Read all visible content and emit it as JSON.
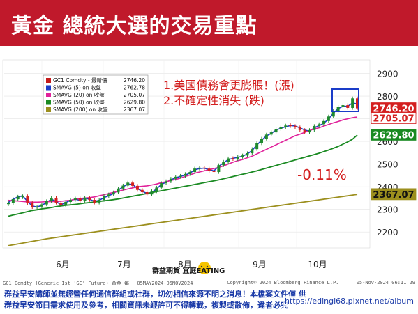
{
  "header": {
    "title": "黃金 總統大選的交易重點"
  },
  "annotations": {
    "line1": "1.美國債務會更膨脹！(漲)",
    "line2": "2.不確定性消失 (跌)",
    "change": "-0.11%"
  },
  "watermark": {
    "text": "群益期貨 宜庭EATING"
  },
  "footnote": {
    "left": "GC1 Comdty (Generic 1st 'GC' Future) 黃金 每日 05MAY2024-05NOV2024",
    "right": "Copyright© 2024 Bloomberg Finance L.P.",
    "date": "05-Nov-2024 06:11:29"
  },
  "disclaimer": {
    "line1": "群益早安講師並無經營任何通信群組或社群，切勿相信來源不明之消息！本檔案文件僅 供",
    "line2": "群益早安節目需求使用及參考，相關資訊未經許可不得轉載，複製或散佈，違者必究",
    "url": "https://edingl68.pixnet.net/album"
  },
  "colors": {
    "accent": "#c0192b",
    "sma5": "#1a3cc8",
    "sma20": "#e0209a",
    "sma50": "#1a8a22",
    "sma200": "#9c8f1e",
    "up": "#1f8a2e",
    "down": "#d42020"
  },
  "chart_data": {
    "type": "line",
    "subtype": "candlestick",
    "x_ticks": [
      "6月",
      "7月",
      "8月",
      "9月",
      "10月"
    ],
    "y_ticks": [
      2200,
      2300,
      2400,
      2500,
      2600,
      2700,
      2800,
      2900
    ],
    "ylim": [
      2130,
      2960
    ],
    "grid": true,
    "legend": {
      "placement": "top-left",
      "items": [
        {
          "name": "GC1 Comdty - 最新價",
          "value": "2746.20",
          "color": "#c41a1a"
        },
        {
          "name": "SMAVG (5)  on 收盤",
          "value": "2762.78",
          "color": "#1a3cc8"
        },
        {
          "name": "SMAVG (20) on 收盤",
          "value": "2705.07",
          "color": "#e0209a"
        },
        {
          "name": "SMAVG (50) on 收盤",
          "value": "2629.80",
          "color": "#1a8a22"
        },
        {
          "name": "SMAVG (200) on 收盤",
          "value": "2367.07",
          "color": "#9c8f1e"
        }
      ]
    },
    "last_value_labels": [
      {
        "text": "2746.20",
        "value": 2746.2,
        "bg": "#d42020",
        "fg": "#ffffff"
      },
      {
        "text": "2705.07",
        "value": 2705.07,
        "bg": "#ffffff",
        "fg": "#d42020"
      },
      {
        "text": "2629.80",
        "value": 2629.8,
        "bg": "#1a8a22",
        "fg": "#ffffff"
      },
      {
        "text": "2367.07",
        "value": 2367.07,
        "bg": "#9c8f1e",
        "fg": "#111111"
      }
    ],
    "series": [
      {
        "name": "SMAVG (5)",
        "values": [
          2330,
          2345,
          2355,
          2360,
          2335,
          2315,
          2310,
          2318,
          2330,
          2345,
          2335,
          2320,
          2330,
          2340,
          2345,
          2340,
          2350,
          2345,
          2335,
          2340,
          2352,
          2360,
          2370,
          2385,
          2400,
          2412,
          2410,
          2392,
          2380,
          2370,
          2375,
          2390,
          2410,
          2420,
          2430,
          2440,
          2445,
          2452,
          2460,
          2475,
          2480,
          2482,
          2475,
          2470,
          2490,
          2505,
          2520,
          2525,
          2530,
          2535,
          2545,
          2560,
          2585,
          2605,
          2625,
          2635,
          2650,
          2658,
          2665,
          2670,
          2668,
          2660,
          2650,
          2645,
          2660,
          2670,
          2680,
          2700,
          2725,
          2745,
          2755,
          2755,
          2770,
          2765
        ]
      },
      {
        "name": "SMAVG (20)",
        "values": [
          2340,
          2338,
          2337,
          2335,
          2333,
          2332,
          2332,
          2333,
          2334,
          2334,
          2335,
          2336,
          2338,
          2340,
          2345,
          2348,
          2350,
          2352,
          2355,
          2360,
          2365,
          2370,
          2375,
          2380,
          2385,
          2390,
          2395,
          2400,
          2402,
          2404,
          2408,
          2412,
          2418,
          2422,
          2428,
          2432,
          2438,
          2445,
          2452,
          2460,
          2465,
          2470,
          2475,
          2480,
          2485,
          2492,
          2500,
          2508,
          2515,
          2520,
          2528,
          2535,
          2545,
          2555,
          2565,
          2575,
          2585,
          2595,
          2605,
          2615,
          2625,
          2632,
          2640,
          2648,
          2655,
          2660,
          2668,
          2675,
          2682,
          2688,
          2695,
          2700,
          2705,
          2708
        ]
      },
      {
        "name": "SMAVG (50)",
        "values": [
          2270,
          2275,
          2280,
          2285,
          2290,
          2295,
          2298,
          2302,
          2305,
          2308,
          2312,
          2315,
          2318,
          2320,
          2322,
          2325,
          2328,
          2330,
          2333,
          2335,
          2338,
          2340,
          2343,
          2346,
          2350,
          2354,
          2358,
          2362,
          2366,
          2370,
          2374,
          2378,
          2382,
          2386,
          2390,
          2394,
          2398,
          2402,
          2406,
          2410,
          2414,
          2418,
          2422,
          2426,
          2430,
          2435,
          2440,
          2445,
          2450,
          2455,
          2460,
          2465,
          2470,
          2476,
          2482,
          2488,
          2494,
          2500,
          2506,
          2512,
          2518,
          2524,
          2530,
          2536,
          2542,
          2548,
          2555,
          2562,
          2570,
          2578,
          2588,
          2598,
          2610,
          2628
        ]
      },
      {
        "name": "SMAVG (200)",
        "values": [
          2140,
          2145,
          2150,
          2155,
          2160,
          2165,
          2170,
          2174,
          2178,
          2182,
          2186,
          2190,
          2194,
          2198,
          2202,
          2206,
          2210,
          2214,
          2218,
          2222,
          2226,
          2230,
          2234,
          2238,
          2242,
          2246,
          2250,
          2254,
          2258,
          2262,
          2266,
          2270,
          2274,
          2278,
          2282,
          2286,
          2290,
          2294,
          2298,
          2302,
          2306,
          2310,
          2314,
          2318,
          2322,
          2326,
          2330,
          2334,
          2338,
          2342,
          2346,
          2350,
          2354,
          2358,
          2362,
          2366
        ]
      }
    ],
    "candles_close": [
      2328,
      2345,
      2356,
      2358,
      2328,
      2310,
      2312,
      2322,
      2336,
      2350,
      2330,
      2318,
      2333,
      2342,
      2348,
      2336,
      2352,
      2342,
      2330,
      2342,
      2358,
      2366,
      2375,
      2392,
      2405,
      2418,
      2404,
      2386,
      2376,
      2366,
      2380,
      2396,
      2416,
      2424,
      2435,
      2444,
      2448,
      2456,
      2465,
      2480,
      2484,
      2480,
      2470,
      2465,
      2495,
      2510,
      2525,
      2522,
      2532,
      2538,
      2548,
      2566,
      2592,
      2612,
      2630,
      2640,
      2655,
      2662,
      2670,
      2668,
      2662,
      2650,
      2640,
      2650,
      2668,
      2676,
      2690,
      2710,
      2735,
      2752,
      2760,
      2748,
      2790,
      2746
    ],
    "candle_up": [
      true,
      true,
      true,
      true,
      false,
      false,
      true,
      true,
      true,
      true,
      false,
      false,
      true,
      true,
      true,
      false,
      true,
      false,
      false,
      true,
      true,
      true,
      true,
      true,
      true,
      true,
      false,
      false,
      false,
      false,
      true,
      true,
      true,
      true,
      true,
      true,
      true,
      true,
      true,
      true,
      true,
      false,
      false,
      false,
      true,
      true,
      true,
      false,
      true,
      true,
      true,
      true,
      true,
      true,
      true,
      true,
      true,
      true,
      true,
      false,
      false,
      false,
      false,
      true,
      true,
      true,
      true,
      true,
      true,
      true,
      true,
      false,
      true,
      false
    ]
  }
}
